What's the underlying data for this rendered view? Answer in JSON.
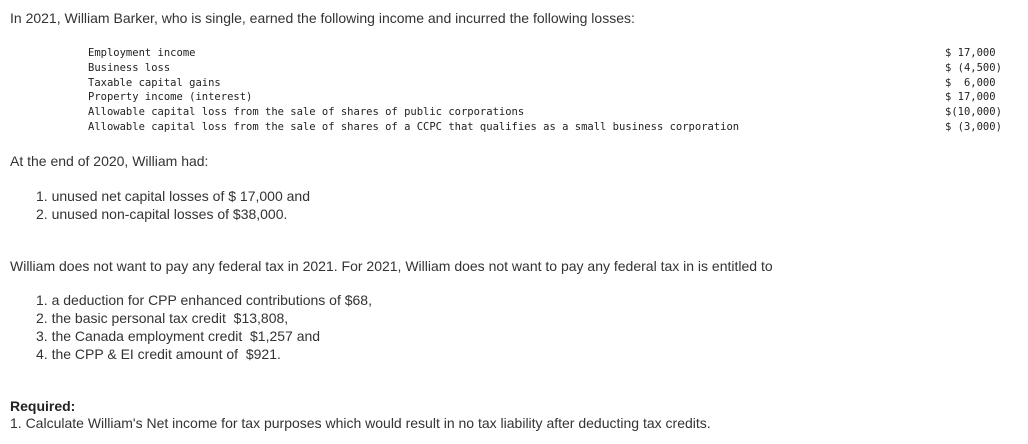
{
  "intro": "In 2021, William Barker, who is single, earned the following income and incurred the following losses:",
  "items": [
    {
      "label": "Employment income",
      "value": "$ 17,000"
    },
    {
      "label": "Business loss",
      "value": "$ (4,500)"
    },
    {
      "label": "Taxable capital gains",
      "value": "$  6,000"
    },
    {
      "label": "Property income (interest)",
      "value": "$ 17,000"
    },
    {
      "label": "Allowable capital loss from the sale of shares of public corporations",
      "value": "$(10,000)"
    },
    {
      "label": "Allowable capital loss from the sale of shares of a CCPC that qualifies as a small business corporation",
      "value": "$ (3,000)"
    }
  ],
  "end2020": "At the end of 2020, William had:",
  "losses": [
    "1. unused net capital losses of $ 17,000 and",
    "2. unused non-capital losses of $38,000."
  ],
  "para2": "William does not want to pay any federal tax in 2021. For 2021, William does not want to pay any federal tax in is entitled to",
  "credits": [
    "1. a deduction for CPP enhanced contributions of $68,",
    "2. the basic personal tax credit  $13,808,",
    "3. the Canada employment credit  $1,257 and",
    "4. the CPP & EI credit amount of  $921."
  ],
  "required_label": "Required:",
  "required_text": "1. Calculate William's Net income for tax purposes which would result in no tax liability after deducting tax credits."
}
